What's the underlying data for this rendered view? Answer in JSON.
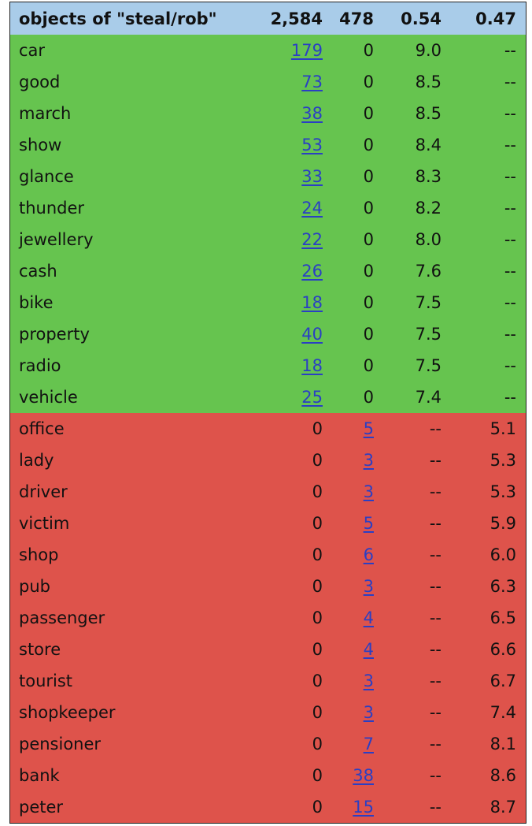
{
  "header": {
    "title": "objects of \"steal/rob\"",
    "col2": "2,584",
    "col3": "478",
    "col4": "0.54",
    "col5": "0.47"
  },
  "colors": {
    "header": "#a9cce9",
    "green": "#66c44f",
    "red": "#de534b",
    "link": "#2a3fc4"
  },
  "rows": [
    {
      "word": "car",
      "c2": "179",
      "c3": "0",
      "c4": "9.0",
      "c5": "--",
      "group": "green"
    },
    {
      "word": "good",
      "c2": "73",
      "c3": "0",
      "c4": "8.5",
      "c5": "--",
      "group": "green"
    },
    {
      "word": "march",
      "c2": "38",
      "c3": "0",
      "c4": "8.5",
      "c5": "--",
      "group": "green"
    },
    {
      "word": "show",
      "c2": "53",
      "c3": "0",
      "c4": "8.4",
      "c5": "--",
      "group": "green"
    },
    {
      "word": "glance",
      "c2": "33",
      "c3": "0",
      "c4": "8.3",
      "c5": "--",
      "group": "green"
    },
    {
      "word": "thunder",
      "c2": "24",
      "c3": "0",
      "c4": "8.2",
      "c5": "--",
      "group": "green"
    },
    {
      "word": "jewellery",
      "c2": "22",
      "c3": "0",
      "c4": "8.0",
      "c5": "--",
      "group": "green"
    },
    {
      "word": "cash",
      "c2": "26",
      "c3": "0",
      "c4": "7.6",
      "c5": "--",
      "group": "green"
    },
    {
      "word": "bike",
      "c2": "18",
      "c3": "0",
      "c4": "7.5",
      "c5": "--",
      "group": "green"
    },
    {
      "word": "property",
      "c2": "40",
      "c3": "0",
      "c4": "7.5",
      "c5": "--",
      "group": "green"
    },
    {
      "word": "radio",
      "c2": "18",
      "c3": "0",
      "c4": "7.5",
      "c5": "--",
      "group": "green"
    },
    {
      "word": "vehicle",
      "c2": "25",
      "c3": "0",
      "c4": "7.4",
      "c5": "--",
      "group": "green"
    },
    {
      "word": "office",
      "c2": "0",
      "c3": "5",
      "c4": "--",
      "c5": "5.1",
      "group": "red"
    },
    {
      "word": "lady",
      "c2": "0",
      "c3": "3",
      "c4": "--",
      "c5": "5.3",
      "group": "red"
    },
    {
      "word": "driver",
      "c2": "0",
      "c3": "3",
      "c4": "--",
      "c5": "5.3",
      "group": "red"
    },
    {
      "word": "victim",
      "c2": "0",
      "c3": "5",
      "c4": "--",
      "c5": "5.9",
      "group": "red"
    },
    {
      "word": "shop",
      "c2": "0",
      "c3": "6",
      "c4": "--",
      "c5": "6.0",
      "group": "red"
    },
    {
      "word": "pub",
      "c2": "0",
      "c3": "3",
      "c4": "--",
      "c5": "6.3",
      "group": "red"
    },
    {
      "word": "passenger",
      "c2": "0",
      "c3": "4",
      "c4": "--",
      "c5": "6.5",
      "group": "red"
    },
    {
      "word": "store",
      "c2": "0",
      "c3": "4",
      "c4": "--",
      "c5": "6.6",
      "group": "red"
    },
    {
      "word": "tourist",
      "c2": "0",
      "c3": "3",
      "c4": "--",
      "c5": "6.7",
      "group": "red"
    },
    {
      "word": "shopkeeper",
      "c2": "0",
      "c3": "3",
      "c4": "--",
      "c5": "7.4",
      "group": "red"
    },
    {
      "word": "pensioner",
      "c2": "0",
      "c3": "7",
      "c4": "--",
      "c5": "8.1",
      "group": "red"
    },
    {
      "word": "bank",
      "c2": "0",
      "c3": "38",
      "c4": "--",
      "c5": "8.6",
      "group": "red"
    },
    {
      "word": "peter",
      "c2": "0",
      "c3": "15",
      "c4": "--",
      "c5": "8.7",
      "group": "red"
    }
  ]
}
